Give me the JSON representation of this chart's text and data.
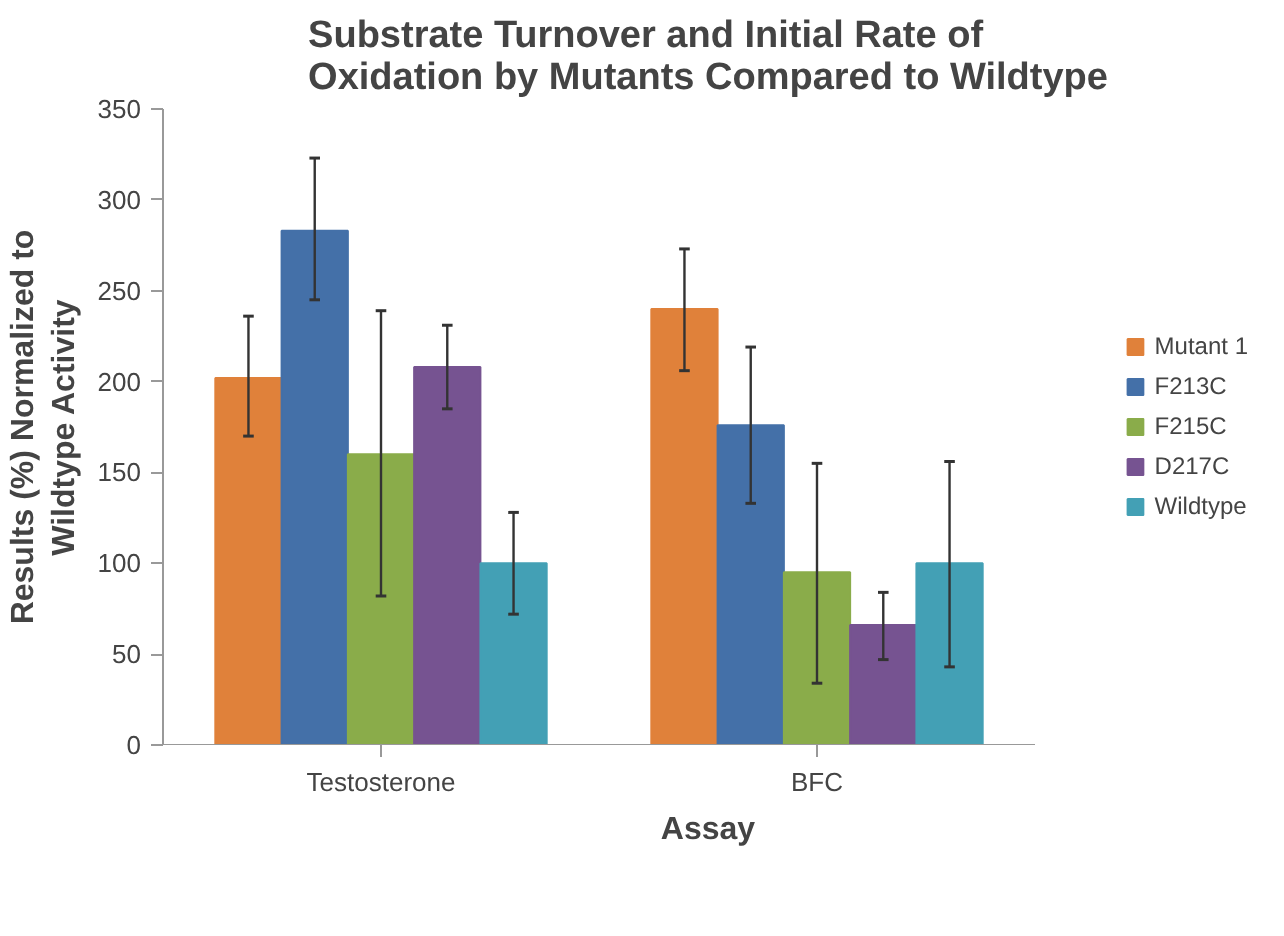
{
  "chart_data": {
    "type": "bar",
    "title": "Substrate Turnover and Initial Rate of\nOxidation by Mutants Compared to Wildtype",
    "xlabel": "Assay",
    "ylabel": "Results (%) Normalized to\nWildtype Activity",
    "categories": [
      "Testosterone",
      "BFC"
    ],
    "series": [
      {
        "name": "Mutant 1",
        "color": "#e0813a",
        "values": [
          202,
          240
        ],
        "errors": [
          [
            170,
            236
          ],
          [
            206,
            273
          ]
        ]
      },
      {
        "name": "F213C",
        "color": "#4470a8",
        "values": [
          283,
          176
        ],
        "errors": [
          [
            245,
            323
          ],
          [
            133,
            219
          ]
        ]
      },
      {
        "name": "F215C",
        "color": "#8aac4a",
        "values": [
          160,
          95
        ],
        "errors": [
          [
            82,
            239
          ],
          [
            34,
            155
          ]
        ]
      },
      {
        "name": "D217C",
        "color": "#765391",
        "values": [
          208,
          66
        ],
        "errors": [
          [
            185,
            231
          ],
          [
            47,
            84
          ]
        ]
      },
      {
        "name": "Wildtype",
        "color": "#43a0b5",
        "values": [
          100,
          100
        ],
        "errors": [
          [
            72,
            128
          ],
          [
            43,
            156
          ]
        ]
      }
    ],
    "ylim": [
      0,
      350
    ],
    "yticks": [
      0,
      50,
      100,
      150,
      200,
      250,
      300,
      350
    ],
    "grid": false,
    "legend": "right"
  }
}
